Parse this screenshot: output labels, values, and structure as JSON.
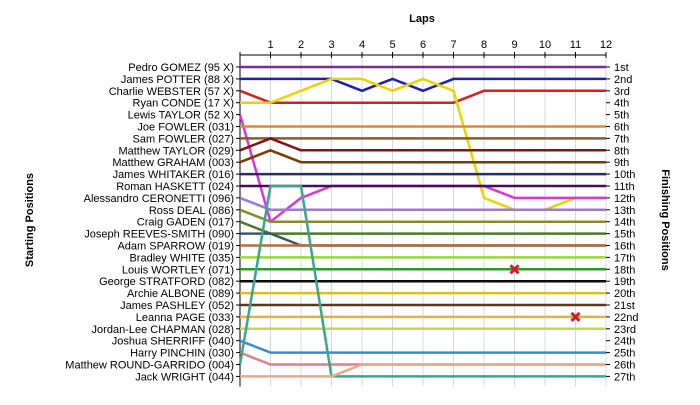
{
  "chart_data": {
    "type": "line",
    "title": "",
    "xlabel": "Laps",
    "ylabel_left": "Starting Positions",
    "ylabel_right": "Finishing Positions",
    "laps": [
      1,
      2,
      3,
      4,
      5,
      6,
      7,
      8,
      9,
      10,
      11,
      12
    ],
    "finishing_labels": [
      "1st",
      "2nd",
      "3rd",
      "4th",
      "5th",
      "6th",
      "7th",
      "8th",
      "9th",
      "10th",
      "11th",
      "12th",
      "13th",
      "14th",
      "15th",
      "16th",
      "17th",
      "18th",
      "19th",
      "20th",
      "21st",
      "22nd",
      "23rd",
      "24th",
      "25th",
      "26th",
      "27th"
    ],
    "retired_marker": "x",
    "series": [
      {
        "name": "Pedro GOMEZ (95 X)",
        "color": "#7b2d8b",
        "positions": [
          1,
          1,
          1,
          1,
          1,
          1,
          1,
          1,
          1,
          1,
          1,
          1,
          1
        ]
      },
      {
        "name": "James POTTER (88 X)",
        "color": "#1f1fb0",
        "positions": [
          2,
          2,
          2,
          2,
          3,
          2,
          3,
          2,
          2,
          2,
          2,
          2,
          2
        ]
      },
      {
        "name": "Charlie WEBSTER (57 X)",
        "color": "#d61f1f",
        "positions": [
          3,
          4,
          4,
          4,
          4,
          4,
          4,
          4,
          3,
          3,
          3,
          3,
          3
        ]
      },
      {
        "name": "Ryan CONDE (17 X)",
        "color": "#e8d400",
        "positions": [
          4,
          4,
          3,
          2,
          2,
          3,
          2,
          3,
          12,
          13,
          13,
          12,
          12
        ]
      },
      {
        "name": "Lewis TAYLOR (52 X)",
        "color": "#e233d6",
        "positions": [
          5,
          14,
          12,
          11,
          11,
          11,
          11,
          11,
          11,
          12,
          12,
          12,
          12
        ]
      },
      {
        "name": "Joe FOWLER (031)",
        "color": "#e8832a",
        "positions": [
          6,
          6,
          6,
          6,
          6,
          6,
          6,
          6,
          6,
          6,
          6,
          6,
          6
        ]
      },
      {
        "name": "Sam FOWLER (027)",
        "color": "#8a5a2b",
        "positions": [
          7,
          7,
          7,
          7,
          7,
          7,
          7,
          7,
          7,
          7,
          7,
          7,
          7
        ]
      },
      {
        "name": "Matthew TAYLOR (029)",
        "color": "#8a0f0f",
        "positions": [
          8,
          7,
          8,
          8,
          8,
          8,
          8,
          8,
          8,
          8,
          8,
          8,
          8
        ]
      },
      {
        "name": "Matthew GRAHAM (003)",
        "color": "#7a3a00",
        "positions": [
          9,
          8,
          9,
          9,
          9,
          9,
          9,
          9,
          9,
          9,
          9,
          9,
          9
        ]
      },
      {
        "name": "James WHITAKER (016)",
        "color": "#2a2a6a",
        "positions": [
          10,
          10,
          10,
          10,
          10,
          10,
          10,
          10,
          10,
          10,
          10,
          10,
          10
        ]
      },
      {
        "name": "Roman HASKETT (024)",
        "color": "#4a0b5a",
        "positions": [
          11,
          11,
          11,
          11,
          11,
          11,
          11,
          11,
          11,
          11,
          11,
          11,
          11
        ]
      },
      {
        "name": "Alessandro CERONETTI (096)",
        "color": "#9a7ad6",
        "positions": [
          12,
          13,
          13,
          13,
          13,
          13,
          13,
          13,
          13,
          13,
          13,
          13,
          13
        ]
      },
      {
        "name": "Ross DEAL (086)",
        "color": "#8a8a2a",
        "positions": [
          13,
          14,
          14,
          14,
          14,
          14,
          14,
          14,
          14,
          14,
          14,
          14,
          14
        ]
      },
      {
        "name": "Craig GADEN (017)",
        "color": "#4a7a2a",
        "positions": [
          14,
          15,
          15,
          15,
          15,
          15,
          15,
          15,
          15,
          15,
          15,
          15,
          15
        ]
      },
      {
        "name": "Joseph REEVES-SMITH (090)",
        "color": "#3a5a6a",
        "positions": [
          15,
          15,
          16,
          16,
          16,
          16,
          16,
          16,
          16,
          16,
          16,
          16,
          16
        ]
      },
      {
        "name": "Adam SPARROW (019)",
        "color": "#b86a3a",
        "positions": [
          16,
          16,
          16,
          16,
          16,
          16,
          16,
          16,
          16,
          16,
          16,
          16,
          16
        ]
      },
      {
        "name": "Bradley WHITE (035)",
        "color": "#9ad63a",
        "positions": [
          17,
          17,
          17,
          17,
          17,
          17,
          17,
          17,
          17,
          17,
          17,
          17,
          17
        ]
      },
      {
        "name": "Louis WORTLEY (071)",
        "color": "#2a9a2a",
        "positions": [
          18,
          18,
          18,
          18,
          18,
          18,
          18,
          18,
          18,
          18,
          18,
          18,
          18
        ]
      },
      {
        "name": "George STRATFORD (082)",
        "color": "#0a0a0a",
        "positions": [
          19,
          19,
          19,
          19,
          19,
          19,
          19,
          19,
          19,
          19,
          19,
          19,
          19
        ]
      },
      {
        "name": "Archie ALBONE (089)",
        "color": "#d6c21a",
        "positions": [
          20,
          20,
          20,
          20,
          20,
          20,
          20,
          20,
          20,
          20,
          20,
          20,
          20
        ]
      },
      {
        "name": "James PASHLEY (052)",
        "color": "#5a3a1a",
        "positions": [
          21,
          21,
          21,
          21,
          21,
          21,
          21,
          21,
          21,
          21,
          21,
          21,
          21
        ]
      },
      {
        "name": "Leanna PAGE (033)",
        "color": "#e8b040",
        "positions": [
          22,
          22,
          22,
          22,
          22,
          22,
          22,
          22,
          22,
          22,
          22,
          22,
          22
        ]
      },
      {
        "name": "Jordan-Lee CHAPMAN (028)",
        "color": "#c2d65a",
        "positions": [
          23,
          23,
          23,
          23,
          23,
          23,
          23,
          23,
          23,
          23,
          23,
          23,
          23
        ]
      },
      {
        "name": "Joshua SHERRIFF (040)",
        "color": "#3a8ad6",
        "positions": [
          24,
          25,
          25,
          25,
          25,
          25,
          25,
          25,
          25,
          25,
          25,
          25,
          25
        ]
      },
      {
        "name": "Harry PINCHIN (030)",
        "color": "#e87a8a",
        "positions": [
          25,
          26,
          26,
          26,
          26,
          26,
          26,
          26,
          26,
          26,
          26,
          26,
          26
        ]
      },
      {
        "name": "Matthew ROUND-GARRIDO (004)",
        "color": "#3aa68a",
        "positions": [
          26,
          11,
          11,
          27,
          27,
          27,
          27,
          27,
          27,
          27,
          27,
          27,
          27
        ]
      },
      {
        "name": "Jack WRIGHT (044)",
        "color": "#e8a88a",
        "positions": [
          27,
          27,
          27,
          27,
          26,
          26,
          26,
          26,
          26,
          26,
          26,
          26,
          26
        ]
      }
    ],
    "retirements": [
      {
        "name": "Louis WORTLEY (071)",
        "lap": 9,
        "position": 18
      },
      {
        "name": "Leanna PAGE (033)",
        "lap": 11,
        "position": 22
      }
    ],
    "grid": true,
    "ylim": [
      1,
      27
    ],
    "xlim": [
      0,
      12
    ]
  }
}
